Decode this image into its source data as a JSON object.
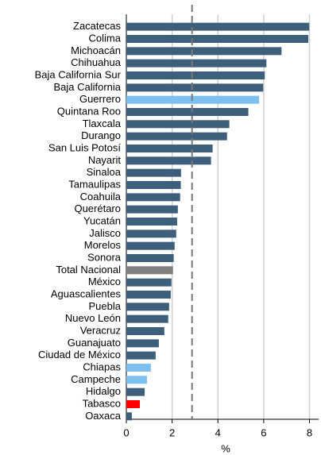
{
  "chart_data": {
    "type": "barh",
    "xlabel": "%",
    "categories": [
      "Zacatecas",
      "Colima",
      "Michoacán",
      "Chihuahua",
      "Baja California Sur",
      "Baja California",
      "Guerrero",
      "Quintana Roo",
      "Tlaxcala",
      "Durango",
      "San Luis Potosí",
      "Nayarit",
      "Sinaloa",
      "Tamaulipas",
      "Coahuila",
      "Querétaro",
      "Yucatán",
      "Jalisco",
      "Morelos",
      "Sonora",
      "Total Nacional",
      "México",
      "Aguascalientes",
      "Puebla",
      "Nuevo León",
      "Veracruz",
      "Guanajuato",
      "Ciudad de México",
      "Chiapas",
      "Campeche",
      "Hidalgo",
      "Tabasco",
      "Oaxaca"
    ],
    "values": [
      7.99,
      7.95,
      6.78,
      6.12,
      6.05,
      5.98,
      5.8,
      5.33,
      4.5,
      4.4,
      3.77,
      3.7,
      2.39,
      2.38,
      2.35,
      2.25,
      2.22,
      2.18,
      2.11,
      2.07,
      2.04,
      1.97,
      1.94,
      1.87,
      1.83,
      1.66,
      1.42,
      1.28,
      1.07,
      0.9,
      0.8,
      0.59,
      0.24
    ],
    "colors": [
      "#3d5f7b",
      "#3d5f7b",
      "#3d5f7b",
      "#3d5f7b",
      "#3d5f7b",
      "#3d5f7b",
      "#7dbfee",
      "#3d5f7b",
      "#3d5f7b",
      "#3d5f7b",
      "#3d5f7b",
      "#3d5f7b",
      "#3d5f7b",
      "#3d5f7b",
      "#3d5f7b",
      "#3d5f7b",
      "#3d5f7b",
      "#3d5f7b",
      "#3d5f7b",
      "#3d5f7b",
      "#808080",
      "#3d5f7b",
      "#3d5f7b",
      "#3d5f7b",
      "#3d5f7b",
      "#3d5f7b",
      "#3d5f7b",
      "#3d5f7b",
      "#7dbfee",
      "#7dbfee",
      "#3d5f7b",
      "#ff0000",
      "#3d5f7b"
    ],
    "xlim": [
      0,
      8.4
    ],
    "xticks": [
      0,
      2,
      4,
      6,
      8
    ],
    "grid": true,
    "reference_line": 2.87
  }
}
